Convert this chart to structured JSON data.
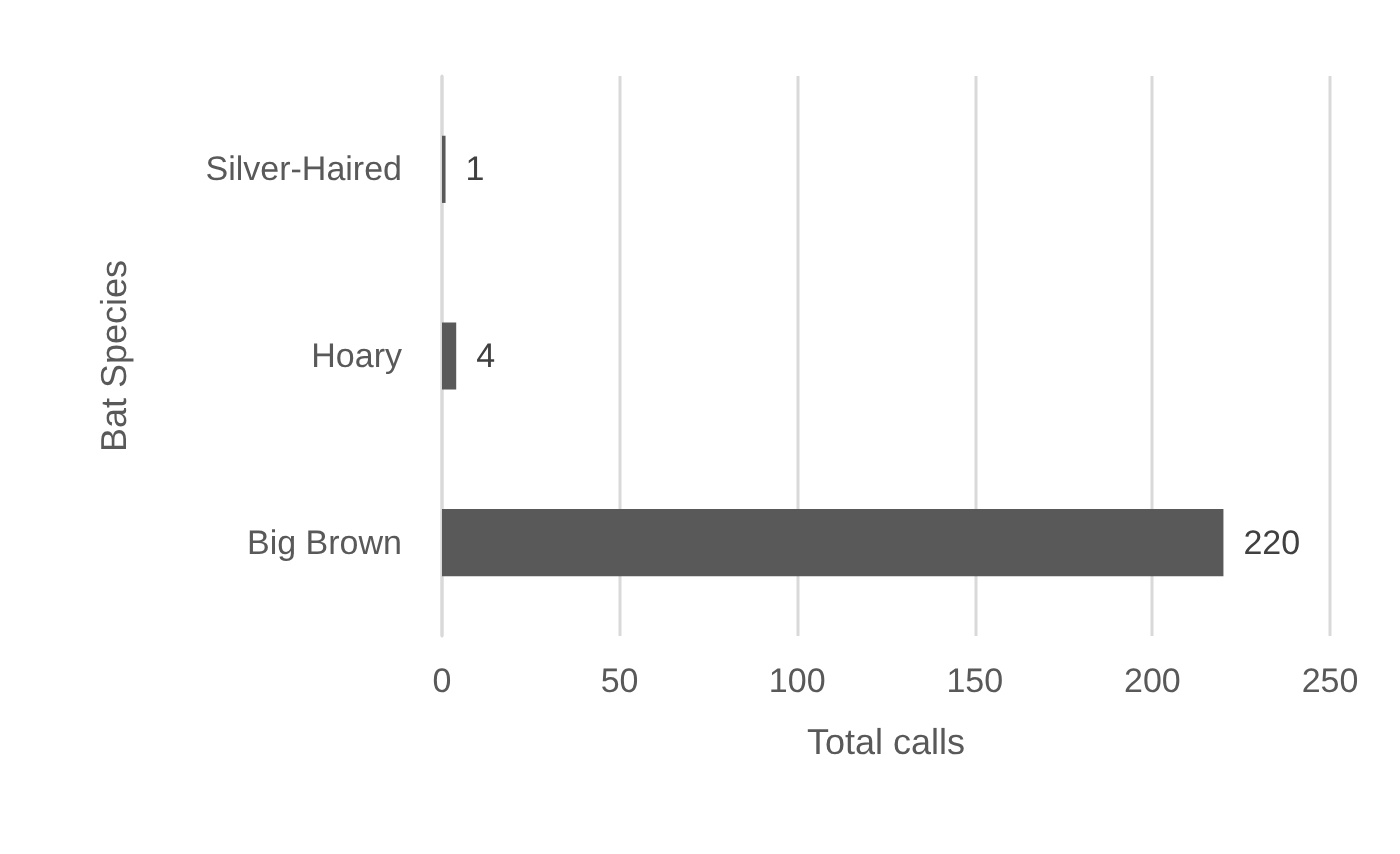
{
  "chart_data": {
    "type": "bar",
    "orientation": "horizontal",
    "categories": [
      "Silver-Haired",
      "Hoary",
      "Big Brown"
    ],
    "values": [
      1,
      4,
      220
    ],
    "color": "#595959",
    "xlabel": "Total calls",
    "ylabel": "Bat Species",
    "xlim": [
      0,
      250
    ],
    "xticks": [
      0,
      50,
      100,
      150,
      200,
      250
    ],
    "grid": "x",
    "data_labels": true
  }
}
